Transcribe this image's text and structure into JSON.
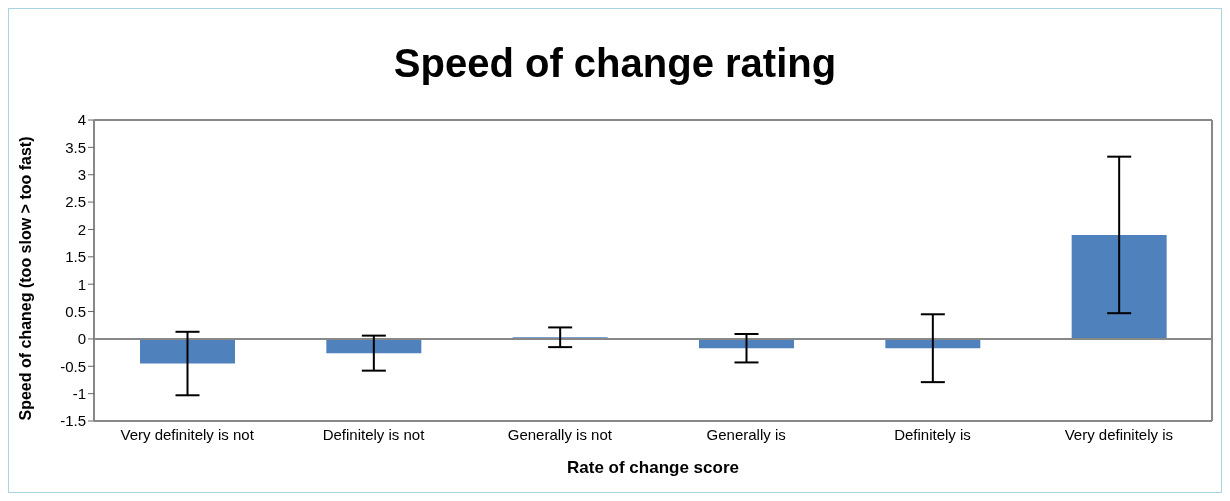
{
  "chart_data": {
    "type": "bar",
    "title": "Speed of change rating",
    "xlabel": "Rate of change score",
    "ylabel": "Speed of chaneg (too slow > too fast)",
    "categories": [
      "Very definitely is not",
      "Definitely is not",
      "Generally is not",
      "Generally is",
      "Definitely is",
      "Very definitely is"
    ],
    "values": [
      -0.45,
      -0.26,
      0.03,
      -0.17,
      -0.17,
      1.9
    ],
    "errors": [
      0.58,
      0.32,
      0.18,
      0.26,
      0.62,
      1.43
    ],
    "color": "#4f81bd",
    "ylim": [
      -1.5,
      4
    ],
    "yticks": [
      -1.5,
      -1,
      -0.5,
      0,
      0.5,
      1,
      1.5,
      2,
      2.5,
      3,
      3.5,
      4
    ],
    "legend": false
  }
}
